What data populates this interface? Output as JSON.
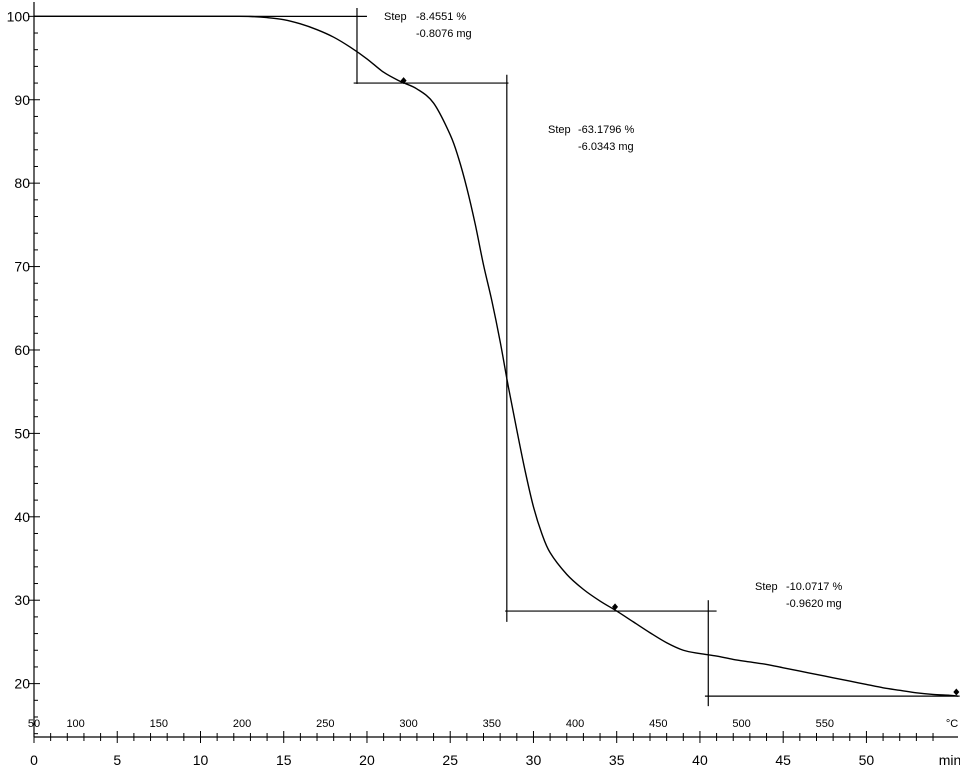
{
  "chart_data": {
    "type": "line",
    "title": "",
    "xlabel": "min",
    "ylabel": "",
    "xlim": [
      0,
      55.5
    ],
    "ylim": [
      13.6,
      101
    ],
    "x_ticks": [
      0,
      5,
      10,
      15,
      20,
      25,
      30,
      35,
      40,
      45,
      50
    ],
    "y_ticks": [
      20,
      30,
      40,
      50,
      60,
      70,
      80,
      90,
      100
    ],
    "x_unit_label": "min",
    "temperature_axis": {
      "unit_label": "°C",
      "ticks": [
        {
          "label": "50",
          "min": 0
        },
        {
          "label": "100",
          "min": 2.5
        },
        {
          "label": "150",
          "min": 7.5
        },
        {
          "label": "200",
          "min": 12.5
        },
        {
          "label": "250",
          "min": 17.5
        },
        {
          "label": "300",
          "min": 22.5
        },
        {
          "label": "350",
          "min": 27.5
        },
        {
          "label": "400",
          "min": 32.5
        },
        {
          "label": "450",
          "min": 37.5
        },
        {
          "label": "500",
          "min": 42.5
        },
        {
          "label": "550",
          "min": 47.5
        }
      ]
    },
    "series": [
      {
        "x": [
          0,
          2,
          4,
          6,
          8,
          10,
          12,
          13,
          14,
          15,
          16,
          17,
          18,
          19,
          20,
          21,
          22,
          23,
          24,
          25,
          25.5,
          26,
          26.5,
          27,
          27.5,
          28,
          28.5,
          29,
          29.5,
          30,
          30.5,
          31,
          32,
          33,
          34,
          35,
          36,
          37,
          38,
          39,
          40,
          41,
          42,
          43,
          44,
          45,
          46,
          47,
          48,
          49,
          50,
          51,
          52,
          53,
          54,
          55,
          55.5
        ],
        "y": [
          100.0,
          100.0,
          100.0,
          100.0,
          100.0,
          100.0,
          100.0,
          99.98,
          99.85,
          99.6,
          99.1,
          98.4,
          97.5,
          96.3,
          94.9,
          93.3,
          92.2,
          91.3,
          89.6,
          85.8,
          83.0,
          79.4,
          75.1,
          70.2,
          65.9,
          61.0,
          55.5,
          50.4,
          45.5,
          41.2,
          38.0,
          35.7,
          33.1,
          31.3,
          29.9,
          28.7,
          27.4,
          26.1,
          24.9,
          24.0,
          23.6,
          23.3,
          22.9,
          22.6,
          22.3,
          21.9,
          21.5,
          21.1,
          20.7,
          20.3,
          19.9,
          19.5,
          19.2,
          18.9,
          18.7,
          18.6,
          18.5
        ]
      }
    ],
    "markers": [
      {
        "x": 22.2,
        "y": 92.3
      },
      {
        "x": 34.9,
        "y": 29.2
      },
      {
        "x": 55.4,
        "y": 19.0
      }
    ],
    "steps": [
      {
        "label": "Step",
        "percent": "-8.4551 %",
        "mass": "-0.8076 mg"
      },
      {
        "label": "Step",
        "percent": "-63.1796 %",
        "mass": "-6.0343 mg"
      },
      {
        "label": "Step",
        "percent": "-10.0717 %",
        "mass": "-0.9620 mg"
      }
    ],
    "constructions": [
      {
        "hline": {
          "y": 100.0,
          "x": [
            0,
            20
          ]
        },
        "vline": {
          "x": 19.4,
          "y": [
            91.9,
            101
          ]
        },
        "hline2": {
          "y": 92.0,
          "x": [
            19.2,
            28.5
          ]
        }
      },
      {
        "vline": {
          "x": 28.4,
          "y": [
            27.4,
            93
          ]
        },
        "hline2": {
          "y": 28.7,
          "x": [
            28.3,
            41
          ]
        }
      },
      {
        "vline": {
          "x": 40.5,
          "y": [
            17.3,
            30
          ]
        },
        "hline2": {
          "y": 18.5,
          "x": [
            40.3,
            55.6
          ]
        }
      }
    ],
    "grid": false,
    "legend": "none"
  }
}
